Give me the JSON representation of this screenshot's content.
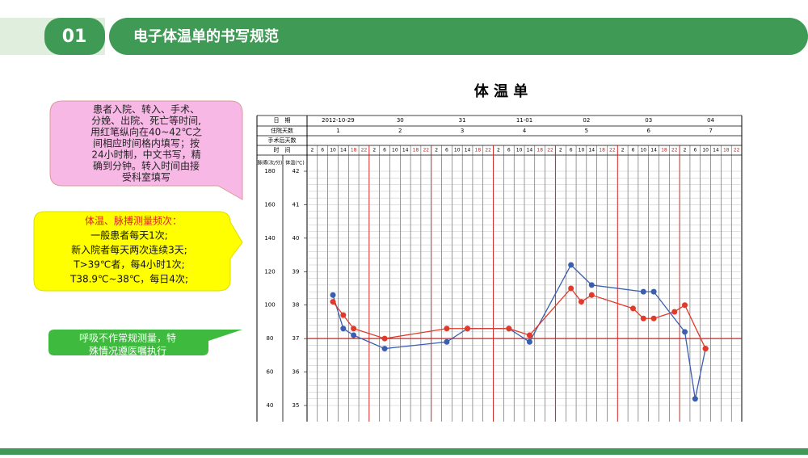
{
  "header": {
    "number": "01",
    "title": "电子体温单的书写规范"
  },
  "callouts": {
    "admission": {
      "lines": [
        "患者入院、转入、手术、",
        "分娩、出院、死亡等时间,",
        "用红笔纵向在40~42℃之",
        "间相应时间格内填写；按",
        "24小时制，中文书写，精",
        "确到分钟。转入时间由接",
        "受科室填写"
      ]
    },
    "frequency": {
      "title": "体温、脉搏测量频次：",
      "lines": [
        "一般患者每天1次;",
        "新入院者每天两次连续3天;",
        "T>39℃者，每4小时1次;",
        "T38.9℃~38℃，每日4次;"
      ]
    },
    "respiration": {
      "lines": [
        "呼吸不作常规测量，特",
        "殊情况遵医嘱执行"
      ]
    }
  },
  "sheet": {
    "title": "体 温 单",
    "row_labels": [
      "日　期",
      "住院天数",
      "手术后天数",
      "时　间"
    ],
    "dates": [
      "2012-10-29",
      "30",
      "31",
      "11-01",
      "02",
      "03",
      "04"
    ],
    "hospital_days": [
      "1",
      "2",
      "3",
      "4",
      "5",
      "6",
      "7"
    ],
    "times": [
      "2",
      "6",
      "10",
      "14",
      "18",
      "22"
    ],
    "pulse_label": "脉搏(次/分)",
    "temp_label": "体温(℃)",
    "pulse_ticks": [
      180,
      160,
      140,
      120,
      100,
      80,
      60,
      40
    ],
    "temp_ticks": [
      42,
      41,
      40,
      39,
      38,
      37,
      36,
      35
    ],
    "temp_range": [
      35,
      42
    ],
    "pulse_series": {
      "color": "#3a5fb0",
      "slots": [
        2,
        3,
        4,
        7,
        13,
        15,
        19,
        21,
        25,
        27,
        32,
        33,
        36,
        37,
        38
      ],
      "values": [
        38.3,
        37.3,
        37.1,
        36.7,
        36.9,
        37.3,
        37.3,
        36.9,
        39.2,
        38.6,
        38.4,
        38.4,
        37.2,
        35.2,
        36.7
      ]
    },
    "temp_series": {
      "color": "#e03a2a",
      "slots": [
        2,
        3,
        4,
        7,
        13,
        15,
        19,
        21,
        25,
        26,
        27,
        31,
        32,
        33,
        35,
        36,
        38
      ],
      "values": [
        38.1,
        37.7,
        37.3,
        37.0,
        37.3,
        37.3,
        37.3,
        37.1,
        38.5,
        38.1,
        38.3,
        37.9,
        37.6,
        37.6,
        37.8,
        38.0,
        36.7
      ]
    }
  }
}
